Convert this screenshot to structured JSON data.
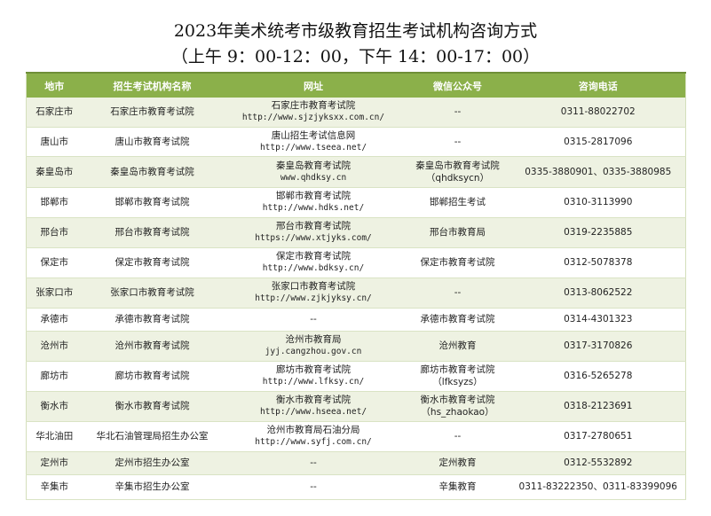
{
  "title": "2023年美术统考市级教育招生考试机构咨询方式",
  "subtitle": "（上午 9：00-12：00，下午 14：00-17：00）",
  "headers": [
    "地市",
    "招生考试机构名称",
    "网址",
    "微信公众号",
    "咨询电话"
  ],
  "rows": [
    {
      "city": "石家庄市",
      "org": "石家庄市教育考试院",
      "site_name": "石家庄市教育考试院",
      "site_url": "http://www.sjzjyksxx.com.cn/",
      "wechat": "--",
      "wechat_id": "",
      "phone": "0311-88022702"
    },
    {
      "city": "唐山市",
      "org": "唐山市教育考试院",
      "site_name": "唐山招生考试信息网",
      "site_url": "http://www.tseea.net/",
      "wechat": "--",
      "wechat_id": "",
      "phone": "0315-2817096"
    },
    {
      "city": "秦皇岛市",
      "org": "秦皇岛市教育考试院",
      "site_name": "秦皇岛教育考试院",
      "site_url": "www.qhdksy.cn",
      "wechat": "秦皇岛市教育考试院",
      "wechat_id": "（qhdksycn）",
      "phone": "0335-3880901、0335-3880985"
    },
    {
      "city": "邯郸市",
      "org": "邯郸市教育考试院",
      "site_name": "邯郸市教育考试院",
      "site_url": "http://www.hdks.net/",
      "wechat": "邯郸招生考试",
      "wechat_id": "",
      "phone": "0310-3113990"
    },
    {
      "city": "邢台市",
      "org": "邢台市教育考试院",
      "site_name": "邢台市教育考试院",
      "site_url": "https://www.xtjyks.com/",
      "wechat": "邢台市教育局",
      "wechat_id": "",
      "phone": "0319-2235885"
    },
    {
      "city": "保定市",
      "org": "保定市教育考试院",
      "site_name": "保定市教育考试院",
      "site_url": "http://www.bdksy.cn/",
      "wechat": "保定市教育考试院",
      "wechat_id": "",
      "phone": "0312-5078378"
    },
    {
      "city": "张家口市",
      "org": "张家口市教育考试院",
      "site_name": "张家口市教育考试院",
      "site_url": "http://www.zjkjyksy.cn/",
      "wechat": "--",
      "wechat_id": "",
      "phone": "0313-8062522"
    },
    {
      "city": "承德市",
      "org": "承德市教育考试院",
      "site_name": "--",
      "site_url": "",
      "wechat": "承德市教育考试院",
      "wechat_id": "",
      "phone": "0314-4301323"
    },
    {
      "city": "沧州市",
      "org": "沧州市教育考试院",
      "site_name": "沧州市教育局",
      "site_url": "jyj.cangzhou.gov.cn",
      "wechat": "沧州教育",
      "wechat_id": "",
      "phone": "0317-3170826"
    },
    {
      "city": "廊坊市",
      "org": "廊坊市教育考试院",
      "site_name": "廊坊市教育考试院",
      "site_url": "http://www.lfksy.cn/",
      "wechat": "廊坊市教育考试院",
      "wechat_id": "（lfksyzs）",
      "phone": "0316-5265278"
    },
    {
      "city": "衡水市",
      "org": "衡水市教育考试院",
      "site_name": "衡水市教育考试院",
      "site_url": "http://www.hseea.net/",
      "wechat": "衡水市教育考试院",
      "wechat_id": "（hs_zhaokao）",
      "phone": "0318-2123691"
    },
    {
      "city": "华北油田",
      "org": "华北石油管理局招生办公室",
      "site_name": "沧州市教育局石油分局",
      "site_url": "http://www.syfj.com.cn/",
      "wechat": "--",
      "wechat_id": "",
      "phone": "0317-2780651"
    },
    {
      "city": "定州市",
      "org": "定州市招生办公室",
      "site_name": "--",
      "site_url": "",
      "wechat": "定州教育",
      "wechat_id": "",
      "phone": "0312-5532892"
    },
    {
      "city": "辛集市",
      "org": "辛集市招生办公室",
      "site_name": "--",
      "site_url": "",
      "wechat": "辛集教育",
      "wechat_id": "",
      "phone": "0311-83222350、0311-83399096"
    }
  ]
}
